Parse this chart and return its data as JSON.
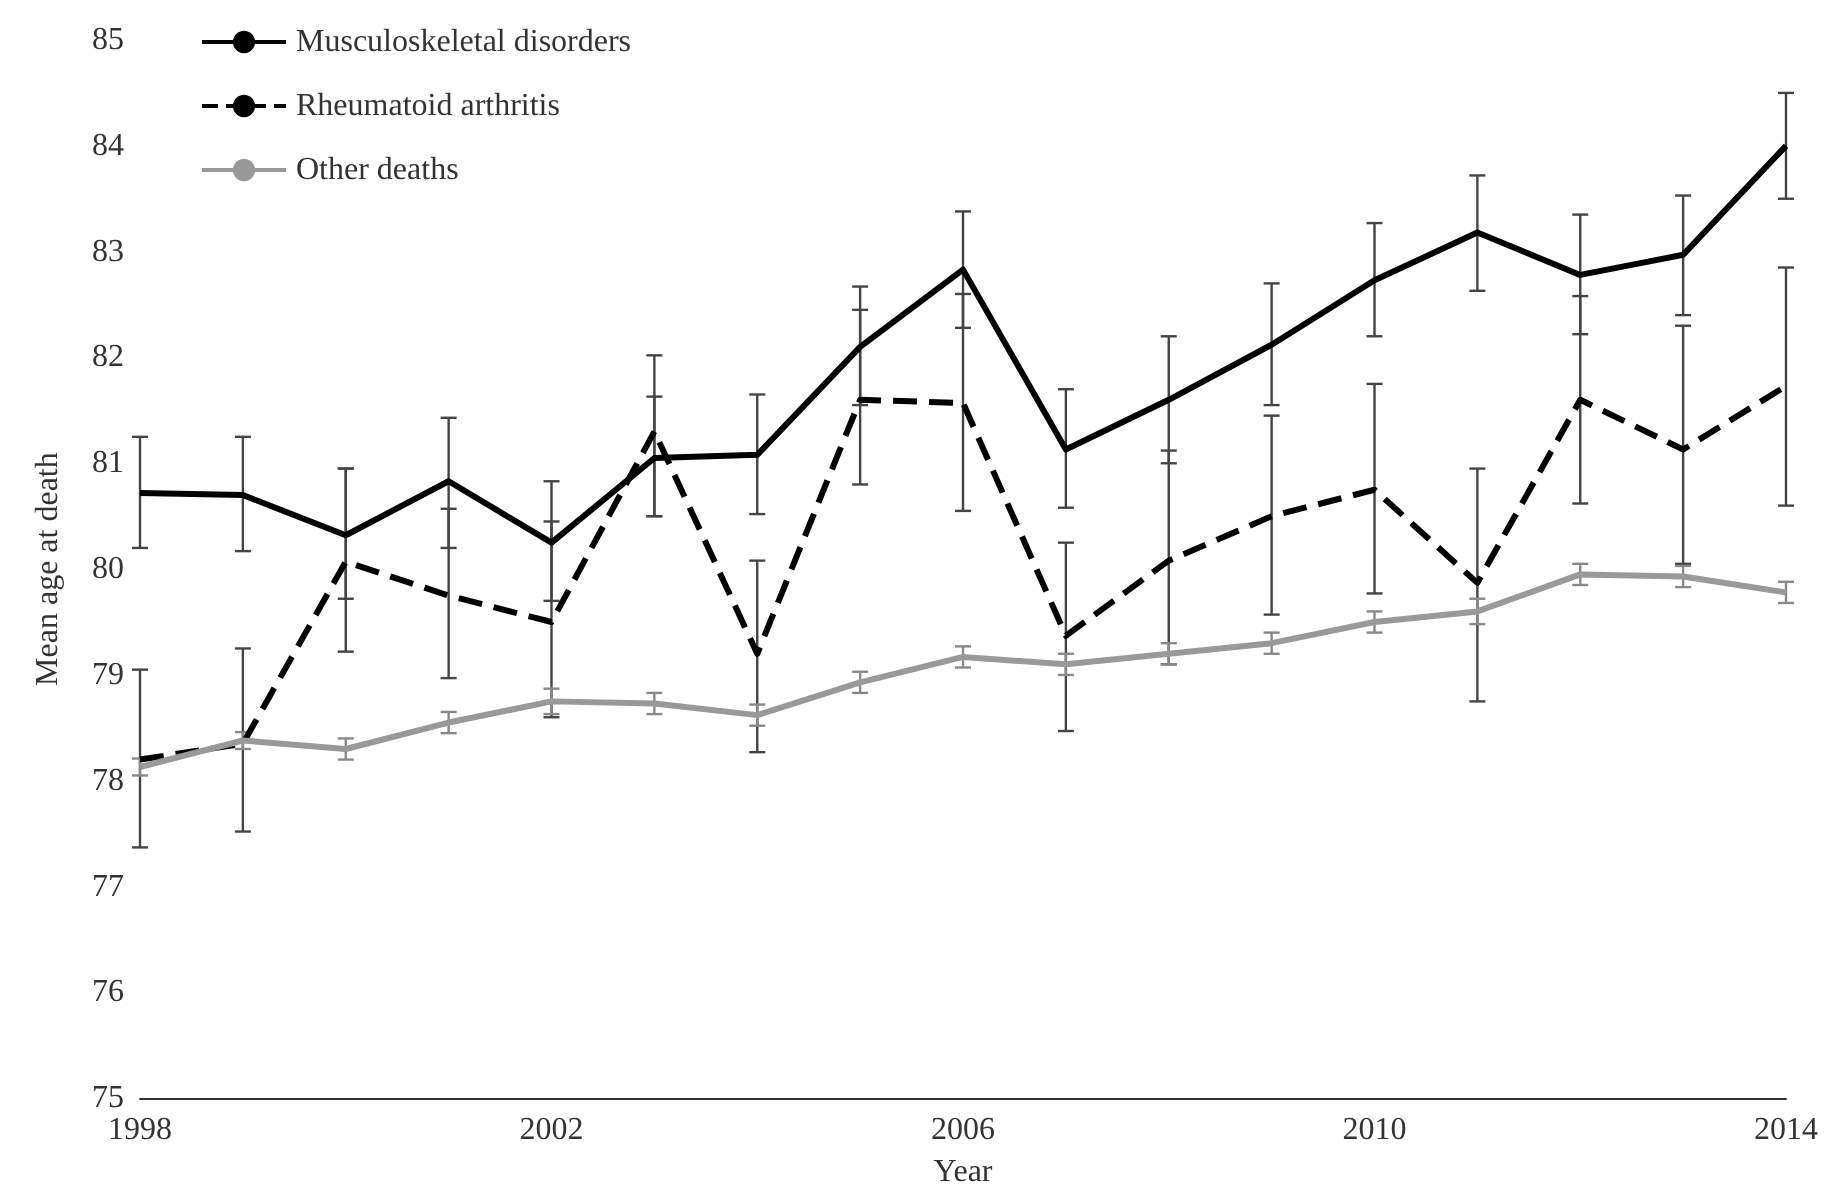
{
  "chart_data": {
    "type": "line",
    "xlabel": "Year",
    "ylabel": "Mean age at death",
    "x": [
      1998,
      1999,
      2000,
      2001,
      2002,
      2003,
      2004,
      2005,
      2006,
      2007,
      2008,
      2009,
      2010,
      2011,
      2012,
      2013,
      2014
    ],
    "xlim": [
      1998,
      2014
    ],
    "xticks": [
      1998,
      2002,
      2006,
      2010,
      2014
    ],
    "ylim": [
      75,
      85
    ],
    "yticks": [
      75,
      76,
      77,
      78,
      79,
      80,
      81,
      82,
      83,
      84,
      85
    ],
    "grid": false,
    "legend": "top left",
    "marker": "none",
    "series": [
      {
        "name": "Musculoskeletal disorders",
        "color": "#000000",
        "line_style": "solid",
        "values": [
          80.72,
          80.7,
          80.32,
          80.83,
          80.25,
          81.05,
          81.08,
          82.1,
          82.83,
          81.13,
          81.6,
          82.12,
          82.73,
          83.18,
          82.78,
          82.97,
          84.0
        ],
        "errors": [
          [
            80.2,
            81.25
          ],
          [
            80.17,
            81.25
          ],
          [
            79.72,
            80.95
          ],
          [
            80.2,
            81.43
          ],
          [
            79.7,
            80.83
          ],
          [
            80.5,
            81.63
          ],
          [
            80.52,
            81.65
          ],
          [
            81.55,
            82.67
          ],
          [
            82.28,
            83.38
          ],
          [
            80.58,
            81.7
          ],
          [
            81.0,
            82.2
          ],
          [
            81.55,
            82.7
          ],
          [
            82.2,
            83.27
          ],
          [
            82.63,
            83.72
          ],
          [
            82.22,
            83.35
          ],
          [
            82.4,
            83.53
          ],
          [
            83.5,
            84.5
          ]
        ]
      },
      {
        "name": "Rheumatoid arthritis",
        "color": "#000000",
        "line_style": "dashed",
        "values": [
          78.2,
          78.35,
          80.07,
          79.75,
          79.5,
          81.3,
          79.2,
          81.6,
          81.57,
          79.37,
          80.08,
          80.5,
          80.75,
          79.87,
          81.6,
          81.13,
          81.73
        ],
        "errors": [
          [
            77.37,
            79.05
          ],
          [
            77.52,
            79.25
          ],
          [
            79.22,
            80.95
          ],
          [
            78.97,
            80.57
          ],
          [
            78.6,
            80.45
          ],
          [
            80.5,
            82.02
          ],
          [
            78.27,
            80.08
          ],
          [
            80.8,
            82.45
          ],
          [
            80.55,
            82.6
          ],
          [
            78.47,
            80.25
          ],
          [
            79.1,
            81.12
          ],
          [
            79.57,
            81.45
          ],
          [
            79.77,
            81.75
          ],
          [
            78.75,
            80.95
          ],
          [
            80.62,
            82.58
          ],
          [
            80.05,
            82.3
          ],
          [
            80.6,
            82.85
          ]
        ]
      },
      {
        "name": "Other deaths",
        "color": "#999999",
        "line_style": "solid",
        "values": [
          78.13,
          78.38,
          78.3,
          78.55,
          78.75,
          78.73,
          78.62,
          78.93,
          79.17,
          79.1,
          79.2,
          79.3,
          79.5,
          79.6,
          79.95,
          79.93,
          79.78
        ],
        "errors": [
          0.08,
          0.08,
          0.1,
          0.1,
          0.12,
          0.1,
          0.1,
          0.1,
          0.1,
          0.1,
          0.1,
          0.1,
          0.1,
          0.12,
          0.1,
          0.1,
          0.1
        ]
      }
    ]
  }
}
